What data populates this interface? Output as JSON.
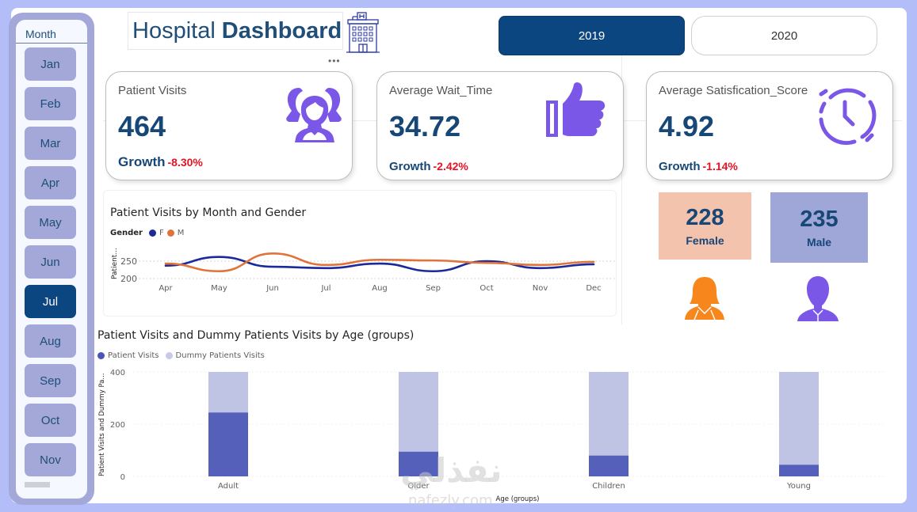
{
  "header": {
    "title_light": "Hospital",
    "title_bold": "Dashboard",
    "more_options": "•••"
  },
  "year_filter": {
    "options": [
      {
        "label": "2019",
        "selected": true
      },
      {
        "label": "2020",
        "selected": false
      }
    ]
  },
  "month_slicer": {
    "header": "Month",
    "items": [
      {
        "label": "Jan",
        "selected": false
      },
      {
        "label": "Feb",
        "selected": false
      },
      {
        "label": "Mar",
        "selected": false
      },
      {
        "label": "Apr",
        "selected": false
      },
      {
        "label": "May",
        "selected": false
      },
      {
        "label": "Jun",
        "selected": false
      },
      {
        "label": "Jul",
        "selected": true
      },
      {
        "label": "Aug",
        "selected": false
      },
      {
        "label": "Sep",
        "selected": false
      },
      {
        "label": "Oct",
        "selected": false
      },
      {
        "label": "Nov",
        "selected": false
      }
    ]
  },
  "kpis": [
    {
      "label": "Patient Visits",
      "value": "464",
      "growth_label": "Growth",
      "growth_value": "-8.30%",
      "icon": "people-group-icon"
    },
    {
      "label": "Average Wait_Time",
      "value": "34.72",
      "growth_label": "Growth",
      "growth_value": "-2.42%",
      "icon": "thumbs-up-icon"
    },
    {
      "label": "Average Satisfication_Score",
      "value": "4.92",
      "growth_label": "Growth",
      "growth_value": "-1.14%",
      "icon": "clock-icon"
    }
  ],
  "gender": {
    "female": {
      "value": "228",
      "label": "Female"
    },
    "male": {
      "value": "235",
      "label": "Male"
    }
  },
  "colors": {
    "primary": "#0b4680",
    "text_dark": "#164777",
    "negative": "#e81123",
    "icon_purple": "#7b57e8",
    "female_orange": "#f7861c",
    "female_tile": "#f4c3ad",
    "male_tile": "#9fa6d8",
    "slicer": "#a3a8d8",
    "line_f": "#1a2a9a",
    "line_m": "#e0733a",
    "bar_patient": "#5460ba",
    "bar_dummy": "#bfc3e4"
  },
  "watermark": {
    "text": "نفذلي",
    "sub": "nafezly.com"
  },
  "chart_data": [
    {
      "type": "line",
      "title": "Patient Visits by Month and Gender",
      "legend_title": "Gender",
      "legend_position": "top-left",
      "xlabel": "",
      "ylabel": "Patient...",
      "categories": [
        "Apr",
        "May",
        "Jun",
        "Jul",
        "Aug",
        "Sep",
        "Oct",
        "Nov",
        "Dec"
      ],
      "yticks": [
        200,
        250
      ],
      "ylim": [
        200,
        280
      ],
      "grid": true,
      "series": [
        {
          "name": "F",
          "values": [
            237,
            262,
            234,
            230,
            243,
            221,
            250,
            230,
            241
          ]
        },
        {
          "name": "M",
          "values": [
            243,
            221,
            272,
            239,
            254,
            252,
            245,
            239,
            248
          ]
        }
      ]
    },
    {
      "type": "bar",
      "stacked": true,
      "title": "Patient Visits and Dummy Patients Visits by Age (groups)",
      "legend_position": "top-left",
      "xlabel": "Age (groups)",
      "ylabel": "Patient Visits and Dummy Pa...",
      "categories": [
        "Adult",
        "Older",
        "Children",
        "Young"
      ],
      "yticks": [
        0,
        200,
        400
      ],
      "ylim": [
        0,
        400
      ],
      "grid": true,
      "series": [
        {
          "name": "Patient Visits",
          "values": [
            245,
            95,
            80,
            45
          ]
        },
        {
          "name": "Dummy Patients Visits",
          "values": [
            155,
            305,
            320,
            355
          ]
        }
      ]
    }
  ]
}
